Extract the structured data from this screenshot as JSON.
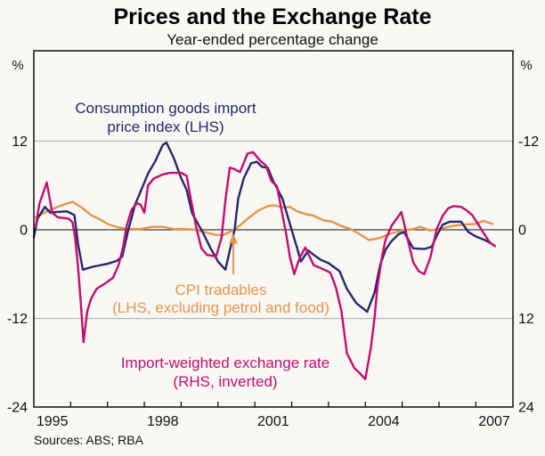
{
  "header": {
    "title": "Prices and the Exchange Rate",
    "subtitle": "Year-ended percentage change"
  },
  "footer": {
    "sources": "Sources: ABS; RBA"
  },
  "chart_data": {
    "type": "line",
    "title": "Prices and the Exchange Rate",
    "subtitle": "Year-ended percentage change",
    "grid": "horizontal gridlines at +12 and -12, dark zero line",
    "legend_position": "in-plot text annotations",
    "x_axis": {
      "range_years": [
        1995,
        2008
      ],
      "tick_years": [
        1996,
        1997,
        1998,
        1999,
        2000,
        2001,
        2002,
        2003,
        2004,
        2005,
        2006,
        2007
      ],
      "labels": [
        "1995",
        "1998",
        "2001",
        "2004",
        "2007"
      ],
      "label_year_centers": [
        1995.5,
        1998.5,
        2001.5,
        2004.5,
        2007.5
      ]
    },
    "left_axis": {
      "unit": "%",
      "range": [
        -24,
        24
      ],
      "tick_labels": [
        "12",
        "0",
        "-12",
        "-24"
      ],
      "tick_values": [
        12,
        0,
        -12,
        -24
      ]
    },
    "right_axis": {
      "unit": "%",
      "range": [
        -24,
        24
      ],
      "inverted": true,
      "tick_labels": [
        "-12",
        "0",
        "12",
        "24"
      ],
      "tick_values": [
        -12,
        0,
        12,
        24
      ]
    },
    "gridline_values": [
      12,
      -12
    ],
    "series": [
      {
        "name": "CPI tradables",
        "axis": "LHS",
        "color": "#e6954b",
        "label_lines": [
          "CPI tradables",
          "(LHS, excluding petrol and food)"
        ],
        "points": [
          [
            1995.05,
            1.7
          ],
          [
            1995.4,
            2.6
          ],
          [
            1995.7,
            3.2
          ],
          [
            1996.05,
            3.8
          ],
          [
            1996.3,
            3.0
          ],
          [
            1996.55,
            2.0
          ],
          [
            1996.8,
            1.4
          ],
          [
            1997.0,
            0.8
          ],
          [
            1997.3,
            0.3
          ],
          [
            1997.6,
            0.1
          ],
          [
            1997.9,
            0.1
          ],
          [
            1998.2,
            0.4
          ],
          [
            1998.5,
            0.4
          ],
          [
            1998.8,
            0.1
          ],
          [
            1999.1,
            0.1
          ],
          [
            1999.4,
            0.0
          ],
          [
            1999.7,
            -0.4
          ],
          [
            1999.95,
            -0.7
          ],
          [
            2000.15,
            -0.7
          ],
          [
            2000.4,
            -0.1
          ],
          [
            2000.6,
            0.6
          ],
          [
            2000.8,
            1.5
          ],
          [
            2001.1,
            2.6
          ],
          [
            2001.35,
            3.2
          ],
          [
            2001.55,
            3.3
          ],
          [
            2001.75,
            3.0
          ],
          [
            2001.95,
            3.1
          ],
          [
            2002.15,
            2.5
          ],
          [
            2002.4,
            2.1
          ],
          [
            2002.6,
            1.9
          ],
          [
            2002.85,
            1.3
          ],
          [
            2003.1,
            1.1
          ],
          [
            2003.35,
            0.5
          ],
          [
            2003.6,
            0.1
          ],
          [
            2003.85,
            -0.6
          ],
          [
            2004.1,
            -1.4
          ],
          [
            2004.4,
            -1.1
          ],
          [
            2004.7,
            -0.5
          ],
          [
            2005.0,
            -0.1
          ],
          [
            2005.3,
            0.1
          ],
          [
            2005.5,
            0.4
          ],
          [
            2005.75,
            -0.1
          ],
          [
            2006.0,
            0.1
          ],
          [
            2006.35,
            0.5
          ],
          [
            2006.65,
            0.7
          ],
          [
            2007.0,
            0.8
          ],
          [
            2007.2,
            1.2
          ],
          [
            2007.45,
            0.8
          ]
        ]
      },
      {
        "name": "Consumption goods import price index",
        "axis": "LHS",
        "color": "#26266e",
        "label_lines": [
          "Consumption goods import",
          "price index (LHS)"
        ],
        "points": [
          [
            1995.0,
            -1.0
          ],
          [
            1995.1,
            1.5
          ],
          [
            1995.3,
            3.1
          ],
          [
            1995.45,
            2.3
          ],
          [
            1995.6,
            2.4
          ],
          [
            1995.9,
            2.5
          ],
          [
            1996.1,
            2.0
          ],
          [
            1996.2,
            -1.9
          ],
          [
            1996.33,
            -5.4
          ],
          [
            1996.6,
            -5.0
          ],
          [
            1997.0,
            -4.6
          ],
          [
            1997.25,
            -4.2
          ],
          [
            1997.4,
            -3.6
          ],
          [
            1997.55,
            -0.3
          ],
          [
            1997.75,
            3.4
          ],
          [
            1997.95,
            5.8
          ],
          [
            1998.1,
            7.6
          ],
          [
            1998.3,
            9.3
          ],
          [
            1998.5,
            11.5
          ],
          [
            1998.6,
            11.8
          ],
          [
            1998.8,
            9.7
          ],
          [
            1999.0,
            7.0
          ],
          [
            1999.15,
            5.4
          ],
          [
            1999.3,
            2.2
          ],
          [
            1999.6,
            -0.5
          ],
          [
            1999.8,
            -2.5
          ],
          [
            2000.0,
            -4.3
          ],
          [
            2000.2,
            -5.4
          ],
          [
            2000.45,
            0.0
          ],
          [
            2000.55,
            4.2
          ],
          [
            2000.7,
            7.0
          ],
          [
            2000.9,
            9.0
          ],
          [
            2001.05,
            9.2
          ],
          [
            2001.2,
            8.5
          ],
          [
            2001.35,
            8.4
          ],
          [
            2001.5,
            6.6
          ],
          [
            2001.75,
            4.2
          ],
          [
            2002.0,
            0.0
          ],
          [
            2002.15,
            -2.5
          ],
          [
            2002.25,
            -4.3
          ],
          [
            2002.45,
            -2.8
          ],
          [
            2002.6,
            -3.4
          ],
          [
            2002.8,
            -4.1
          ],
          [
            2003.0,
            -4.5
          ],
          [
            2003.3,
            -5.6
          ],
          [
            2003.5,
            -8.0
          ],
          [
            2003.75,
            -9.9
          ],
          [
            2004.05,
            -11.1
          ],
          [
            2004.25,
            -8.5
          ],
          [
            2004.4,
            -4.8
          ],
          [
            2004.55,
            -2.7
          ],
          [
            2004.7,
            -1.6
          ],
          [
            2004.9,
            -0.6
          ],
          [
            2005.05,
            -0.3
          ],
          [
            2005.3,
            -2.5
          ],
          [
            2005.6,
            -2.6
          ],
          [
            2005.8,
            -2.3
          ],
          [
            2005.95,
            -0.7
          ],
          [
            2006.1,
            0.7
          ],
          [
            2006.3,
            1.1
          ],
          [
            2006.6,
            1.1
          ],
          [
            2006.8,
            -0.3
          ],
          [
            2007.0,
            -0.9
          ],
          [
            2007.25,
            -1.4
          ],
          [
            2007.5,
            -2.1
          ]
        ]
      },
      {
        "name": "Import-weighted exchange rate",
        "axis": "RHS, inverted",
        "color": "#c40d6e",
        "label_lines": [
          "Import-weighted exchange rate",
          "(RHS, inverted)"
        ],
        "points": [
          [
            1995.05,
            -0.5
          ],
          [
            1995.15,
            -3.5
          ],
          [
            1995.35,
            -6.4
          ],
          [
            1995.5,
            -2.3
          ],
          [
            1995.65,
            -1.7
          ],
          [
            1995.95,
            -1.5
          ],
          [
            1996.05,
            -1.0
          ],
          [
            1996.12,
            1.0
          ],
          [
            1996.2,
            5.0
          ],
          [
            1996.27,
            9.5
          ],
          [
            1996.35,
            15.2
          ],
          [
            1996.45,
            11.0
          ],
          [
            1996.55,
            9.4
          ],
          [
            1996.7,
            8.0
          ],
          [
            1996.95,
            7.2
          ],
          [
            1997.15,
            6.5
          ],
          [
            1997.3,
            4.8
          ],
          [
            1997.42,
            2.4
          ],
          [
            1997.52,
            -0.5
          ],
          [
            1997.65,
            -2.7
          ],
          [
            1997.8,
            -3.6
          ],
          [
            1997.9,
            -3.4
          ],
          [
            1998.0,
            -2.3
          ],
          [
            1998.1,
            -6.0
          ],
          [
            1998.25,
            -6.9
          ],
          [
            1998.5,
            -7.5
          ],
          [
            1998.7,
            -7.7
          ],
          [
            1999.0,
            -7.7
          ],
          [
            1999.15,
            -7.3
          ],
          [
            1999.25,
            -4.5
          ],
          [
            1999.4,
            -0.5
          ],
          [
            1999.55,
            2.5
          ],
          [
            1999.7,
            3.4
          ],
          [
            1999.95,
            3.6
          ],
          [
            2000.1,
            1.0
          ],
          [
            2000.2,
            -4.0
          ],
          [
            2000.32,
            -8.4
          ],
          [
            2000.45,
            -8.2
          ],
          [
            2000.6,
            -7.8
          ],
          [
            2000.8,
            -10.3
          ],
          [
            2000.95,
            -10.5
          ],
          [
            2001.15,
            -9.3
          ],
          [
            2001.3,
            -8.7
          ],
          [
            2001.45,
            -6.6
          ],
          [
            2001.6,
            -5.9
          ],
          [
            2001.72,
            -2.8
          ],
          [
            2001.85,
            0.5
          ],
          [
            2001.95,
            3.7
          ],
          [
            2002.07,
            6.0
          ],
          [
            2002.2,
            4.0
          ],
          [
            2002.37,
            2.4
          ],
          [
            2002.6,
            4.8
          ],
          [
            2002.8,
            5.2
          ],
          [
            2003.05,
            5.8
          ],
          [
            2003.2,
            7.8
          ],
          [
            2003.35,
            11.0
          ],
          [
            2003.5,
            16.7
          ],
          [
            2003.7,
            18.7
          ],
          [
            2003.85,
            19.4
          ],
          [
            2004.0,
            20.2
          ],
          [
            2004.15,
            16.0
          ],
          [
            2004.25,
            11.9
          ],
          [
            2004.33,
            7.6
          ],
          [
            2004.45,
            3.7
          ],
          [
            2004.55,
            1.3
          ],
          [
            2004.72,
            -0.6
          ],
          [
            2004.98,
            -2.4
          ],
          [
            2005.15,
            1.3
          ],
          [
            2005.3,
            4.4
          ],
          [
            2005.45,
            5.6
          ],
          [
            2005.6,
            6.0
          ],
          [
            2005.77,
            3.7
          ],
          [
            2005.93,
            0.0
          ],
          [
            2006.1,
            -1.9
          ],
          [
            2006.25,
            -2.9
          ],
          [
            2006.4,
            -3.2
          ],
          [
            2006.6,
            -3.1
          ],
          [
            2006.73,
            -2.7
          ],
          [
            2006.9,
            -2.0
          ],
          [
            2007.07,
            -0.7
          ],
          [
            2007.22,
            0.5
          ],
          [
            2007.38,
            1.7
          ],
          [
            2007.52,
            2.2
          ]
        ]
      }
    ],
    "annotation_arrow": {
      "color": "#e6954b",
      "points_to": "CPI tradables line at zero, around year 2000.4"
    }
  }
}
